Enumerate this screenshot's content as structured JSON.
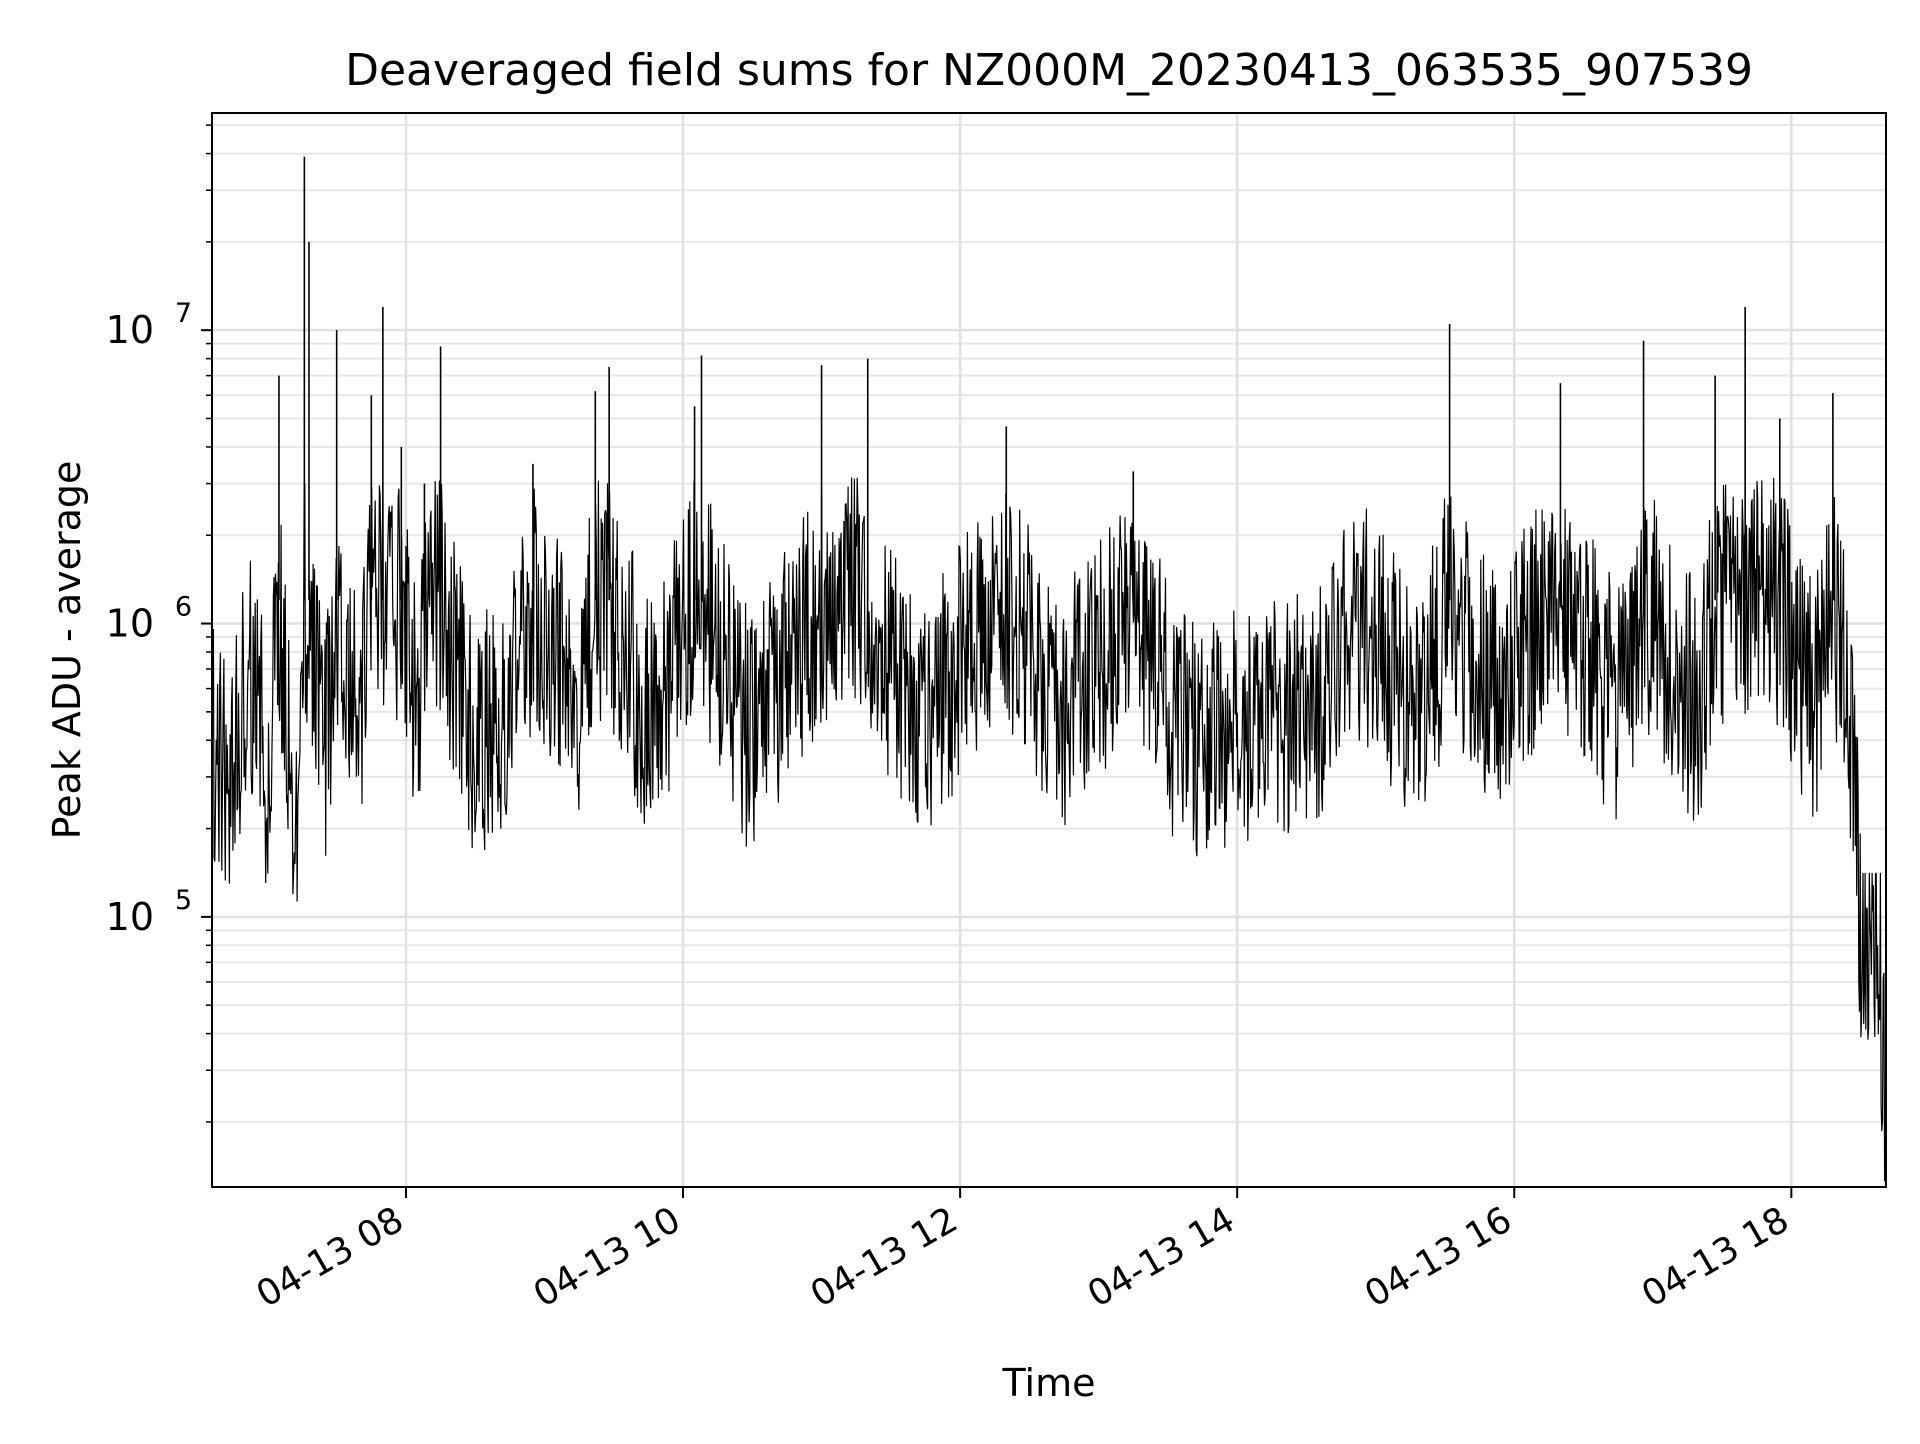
{
  "chart_data": {
    "type": "line",
    "title": "Deaveraged field sums for NZ000M_20230413_063535_907539",
    "xlabel": "Time",
    "ylabel": "Peak ADU - average",
    "y_scale": "log",
    "grid": true,
    "grid_minor": true,
    "line_color": "#000000",
    "xlim": [
      "2023-04-13 06:36",
      "2023-04-13 18:41"
    ],
    "ylim": [
      12000,
      55000000
    ],
    "x_ticks": [
      {
        "label": "04-13 08",
        "value": "2023-04-13 08:00"
      },
      {
        "label": "04-13 10",
        "value": "2023-04-13 10:00"
      },
      {
        "label": "04-13 12",
        "value": "2023-04-13 12:00"
      },
      {
        "label": "04-13 14",
        "value": "2023-04-13 14:00"
      },
      {
        "label": "04-13 16",
        "value": "2023-04-13 16:00"
      },
      {
        "label": "04-13 18",
        "value": "2023-04-13 18:00"
      }
    ],
    "y_ticks": [
      {
        "base": "10",
        "exp": "5",
        "value": 100000
      },
      {
        "base": "10",
        "exp": "6",
        "value": 1000000
      },
      {
        "base": "10",
        "exp": "7",
        "value": 10000000
      }
    ],
    "series": [
      {
        "points": [
          [
            "2023-04-13 06:36",
            400000
          ],
          [
            "2023-04-13 06:45",
            320000
          ],
          [
            "2023-04-13 06:52",
            800000
          ],
          [
            "2023-04-13 07:00",
            300000
          ],
          [
            "2023-04-13 07:05",
            7000000
          ],
          [
            "2023-04-13 07:12",
            200000
          ],
          [
            "2023-04-13 07:16",
            39000000
          ],
          [
            "2023-04-13 07:18",
            20000000
          ],
          [
            "2023-04-13 07:25",
            350000
          ],
          [
            "2023-04-13 07:30",
            10000000
          ],
          [
            "2023-04-13 07:40",
            400000
          ],
          [
            "2023-04-13 07:45",
            6000000
          ],
          [
            "2023-04-13 07:50",
            12000000
          ],
          [
            "2023-04-13 07:58",
            4000000
          ],
          [
            "2023-04-13 08:05",
            500000
          ],
          [
            "2023-04-13 08:08",
            3000000
          ],
          [
            "2023-04-13 08:15",
            8800000
          ],
          [
            "2023-04-13 08:30",
            400000
          ],
          [
            "2023-04-13 08:45",
            500000
          ],
          [
            "2023-04-13 08:55",
            3500000
          ],
          [
            "2023-04-13 09:15",
            500000
          ],
          [
            "2023-04-13 09:22",
            6200000
          ],
          [
            "2023-04-13 09:28",
            7500000
          ],
          [
            "2023-04-13 09:45",
            450000
          ],
          [
            "2023-04-13 10:05",
            5500000
          ],
          [
            "2023-04-13 10:08",
            8200000
          ],
          [
            "2023-04-13 10:30",
            400000
          ],
          [
            "2023-04-13 11:00",
            7600000
          ],
          [
            "2023-04-13 11:20",
            8000000
          ],
          [
            "2023-04-13 11:40",
            450000
          ],
          [
            "2023-04-13 12:20",
            4700000
          ],
          [
            "2023-04-13 12:45",
            500000
          ],
          [
            "2023-04-13 13:15",
            3300000
          ],
          [
            "2023-04-13 13:35",
            400000
          ],
          [
            "2023-04-13 14:00",
            450000
          ],
          [
            "2023-04-13 14:30",
            500000
          ],
          [
            "2023-04-13 14:55",
            1000000
          ],
          [
            "2023-04-13 15:20",
            500000
          ],
          [
            "2023-04-13 15:32",
            10500000
          ],
          [
            "2023-04-13 15:50",
            600000
          ],
          [
            "2023-04-13 16:20",
            6600000
          ],
          [
            "2023-04-13 16:45",
            500000
          ],
          [
            "2023-04-13 16:56",
            9200000
          ],
          [
            "2023-04-13 17:20",
            500000
          ],
          [
            "2023-04-13 17:27",
            7000000
          ],
          [
            "2023-04-13 17:40",
            12000000
          ],
          [
            "2023-04-13 17:55",
            5000000
          ],
          [
            "2023-04-13 18:10",
            500000
          ],
          [
            "2023-04-13 18:18",
            6100000
          ],
          [
            "2023-04-13 18:25",
            500000
          ],
          [
            "2023-04-13 18:30",
            100000
          ],
          [
            "2023-04-13 18:38",
            90000
          ],
          [
            "2023-04-13 18:41",
            18000
          ]
        ]
      }
    ]
  }
}
